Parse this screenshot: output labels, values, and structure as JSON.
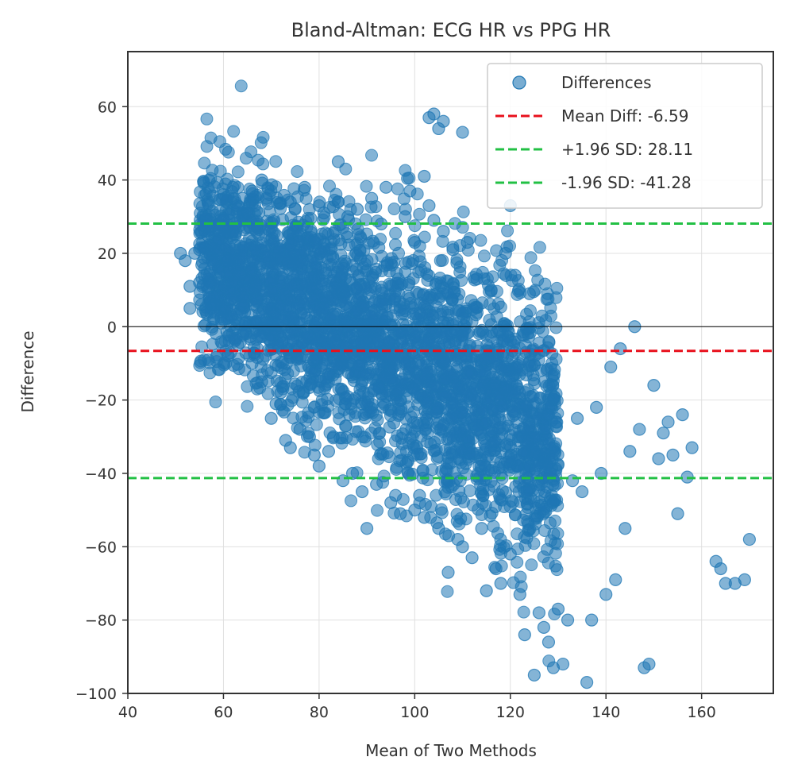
{
  "chart_data": {
    "type": "scatter",
    "title": "Bland-Altman: ECG HR vs PPG HR",
    "xlabel": "Mean of Two Methods",
    "ylabel": "Difference",
    "xlim": [
      40,
      175
    ],
    "ylim": [
      -100,
      75
    ],
    "xticks": [
      40,
      60,
      80,
      100,
      120,
      140,
      160
    ],
    "yticks": [
      -100,
      -80,
      -60,
      -40,
      -20,
      0,
      20,
      40,
      60
    ],
    "xtick_labels": [
      "40",
      "60",
      "80",
      "100",
      "120",
      "140",
      "160"
    ],
    "ytick_labels": [
      "−100",
      "−80",
      "−60",
      "−40",
      "−20",
      "0",
      "20",
      "40",
      "60"
    ],
    "grid": true,
    "legend_position": "top-right",
    "colors": {
      "points": "#1f77b4",
      "mean_line": "#e8101c",
      "sd_lines": "#22c044",
      "zero_line": "#000000",
      "grid": "#e0e0e0",
      "axes": "#333333"
    },
    "series": [
      {
        "name": "Differences",
        "kind": "scatter",
        "points": [
          [
            51,
            20
          ],
          [
            52,
            18
          ],
          [
            53,
            11
          ],
          [
            53,
            5
          ],
          [
            54,
            20
          ],
          [
            55,
            21
          ],
          [
            55,
            12
          ],
          [
            56,
            14
          ],
          [
            57,
            8
          ],
          [
            58,
            6
          ],
          [
            58,
            17
          ],
          [
            59,
            24
          ],
          [
            59,
            26
          ],
          [
            60,
            2
          ],
          [
            60,
            29
          ],
          [
            61,
            -8
          ],
          [
            61,
            18
          ],
          [
            62,
            38
          ],
          [
            62,
            26
          ],
          [
            63,
            -5
          ],
          [
            63,
            33
          ],
          [
            64,
            35
          ],
          [
            64,
            -2
          ],
          [
            65,
            31
          ],
          [
            66,
            37
          ],
          [
            66,
            -10
          ],
          [
            67,
            28
          ],
          [
            68,
            40
          ],
          [
            68,
            -15
          ],
          [
            69,
            35
          ],
          [
            70,
            -25
          ],
          [
            70,
            27
          ],
          [
            71,
            -21
          ],
          [
            72,
            -18
          ],
          [
            73,
            -31
          ],
          [
            74,
            -33
          ],
          [
            74,
            34
          ],
          [
            75,
            32
          ],
          [
            76,
            -28
          ],
          [
            77,
            38
          ],
          [
            78,
            -30
          ],
          [
            79,
            -35
          ],
          [
            80,
            33
          ],
          [
            80,
            -38
          ],
          [
            81,
            31
          ],
          [
            82,
            -34
          ],
          [
            83,
            -30
          ],
          [
            84,
            45
          ],
          [
            84,
            34
          ],
          [
            85,
            -42
          ],
          [
            86,
            30
          ],
          [
            87,
            -40
          ],
          [
            88,
            32
          ],
          [
            89,
            -45
          ],
          [
            90,
            -55
          ],
          [
            91,
            35
          ],
          [
            92,
            -43
          ],
          [
            93,
            28
          ],
          [
            94,
            38
          ],
          [
            95,
            -48
          ],
          [
            96,
            -46
          ],
          [
            97,
            -51
          ],
          [
            98,
            30
          ],
          [
            99,
            37
          ],
          [
            100,
            23
          ],
          [
            100,
            -50
          ],
          [
            101,
            -46
          ],
          [
            102,
            41
          ],
          [
            102,
            -52
          ],
          [
            103,
            57
          ],
          [
            103,
            33
          ],
          [
            104,
            58
          ],
          [
            104,
            29
          ],
          [
            105,
            54
          ],
          [
            105,
            -55
          ],
          [
            106,
            56
          ],
          [
            106,
            26
          ],
          [
            107,
            -67
          ],
          [
            108,
            21
          ],
          [
            109,
            -58
          ],
          [
            110,
            53
          ],
          [
            110,
            -60
          ],
          [
            111,
            23
          ],
          [
            112,
            -63
          ],
          [
            113,
            13
          ],
          [
            114,
            -55
          ],
          [
            115,
            -72
          ],
          [
            116,
            10
          ],
          [
            117,
            -66
          ],
          [
            118,
            -70
          ],
          [
            119,
            20
          ],
          [
            120,
            33
          ],
          [
            120,
            -62
          ],
          [
            121,
            14
          ],
          [
            122,
            -73
          ],
          [
            123,
            -84
          ],
          [
            124,
            9
          ],
          [
            125,
            -95
          ],
          [
            126,
            -78
          ],
          [
            127,
            -82
          ],
          [
            128,
            -86
          ],
          [
            129,
            -93
          ],
          [
            130,
            -77
          ],
          [
            131,
            -92
          ],
          [
            132,
            -80
          ],
          [
            133,
            -42
          ],
          [
            134,
            -25
          ],
          [
            135,
            -45
          ],
          [
            136,
            -97
          ],
          [
            137,
            -80
          ],
          [
            138,
            -22
          ],
          [
            139,
            -40
          ],
          [
            140,
            -73
          ],
          [
            141,
            -11
          ],
          [
            142,
            -69
          ],
          [
            143,
            -6
          ],
          [
            144,
            -55
          ],
          [
            145,
            -34
          ],
          [
            146,
            0
          ],
          [
            147,
            -28
          ],
          [
            148,
            -93
          ],
          [
            149,
            -92
          ],
          [
            150,
            -16
          ],
          [
            151,
            -36
          ],
          [
            152,
            -29
          ],
          [
            153,
            -26
          ],
          [
            154,
            -35
          ],
          [
            155,
            -51
          ],
          [
            156,
            -24
          ],
          [
            157,
            -41
          ],
          [
            158,
            -33
          ],
          [
            163,
            -64
          ],
          [
            164,
            -66
          ],
          [
            165,
            -70
          ],
          [
            167,
            -70
          ],
          [
            169,
            -69
          ],
          [
            170,
            -58
          ]
        ]
      },
      {
        "name": "Mean Diff: -6.59",
        "kind": "hline",
        "y": -6.59
      },
      {
        "name": "+1.96 SD: 28.11",
        "kind": "hline",
        "y": 28.11
      },
      {
        "name": "-1.96 SD: -41.28",
        "kind": "hline",
        "y": -41.28
      }
    ],
    "reference_line": {
      "y": 0
    },
    "legend": [
      {
        "label": "Differences",
        "kind": "marker"
      },
      {
        "label": "Mean Diff: -6.59",
        "kind": "line",
        "color_key": "mean_line"
      },
      {
        "label": "+1.96 SD: 28.11",
        "kind": "line",
        "color_key": "sd_lines"
      },
      {
        "label": "-1.96 SD: -41.28",
        "kind": "line",
        "color_key": "sd_lines"
      }
    ]
  }
}
